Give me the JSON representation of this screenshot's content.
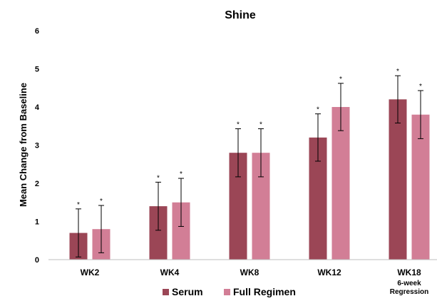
{
  "chart_data": {
    "type": "bar",
    "title": "Shine",
    "xlabel": "",
    "ylabel": "Mean Change from Baseline",
    "ylim": [
      0,
      6
    ],
    "yticks": [
      0,
      1,
      2,
      3,
      4,
      5,
      6
    ],
    "categories": [
      "WK2",
      "WK4",
      "WK8",
      "WK12",
      "WK18"
    ],
    "category_sublabels": [
      "",
      "",
      "",
      "",
      "6-week Regression"
    ],
    "grid": false,
    "legend_position": "bottom",
    "series": [
      {
        "name": "Serum",
        "color": "#9b4656",
        "values": [
          0.7,
          1.4,
          2.8,
          3.2,
          4.2
        ],
        "error": [
          0.63,
          0.63,
          0.63,
          0.62,
          0.62
        ],
        "significance": [
          "*",
          "*",
          "*",
          "*",
          "*"
        ]
      },
      {
        "name": "Full Regimen",
        "color": "#d27e96",
        "values": [
          0.8,
          1.5,
          2.8,
          4.0,
          3.8
        ],
        "error": [
          0.62,
          0.63,
          0.63,
          0.62,
          0.63
        ],
        "significance": [
          "*",
          "*",
          "*",
          "*",
          "*"
        ]
      }
    ]
  }
}
